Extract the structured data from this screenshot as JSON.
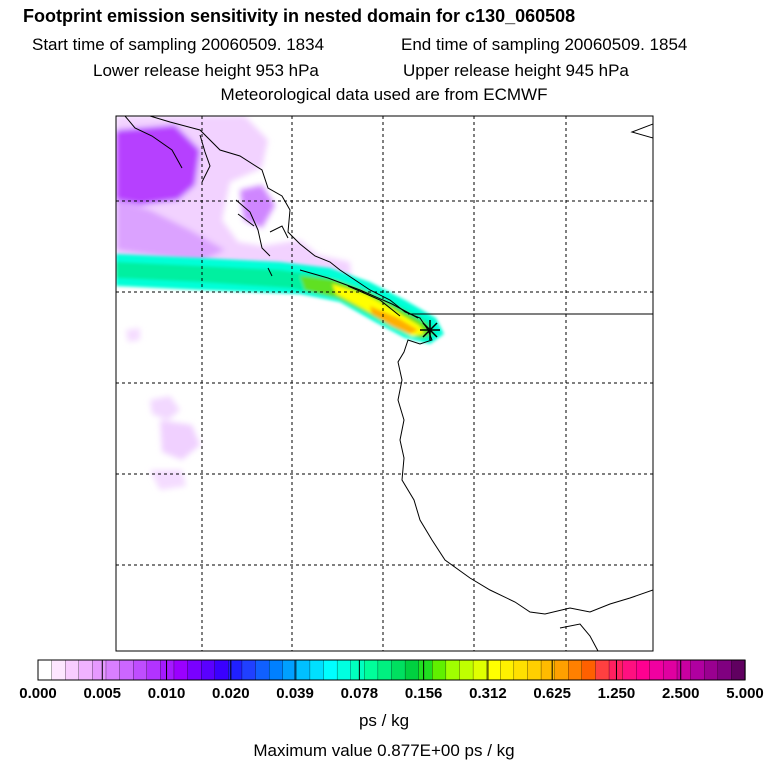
{
  "header": {
    "title": "Footprint emission sensitivity in nested domain for c130_060508",
    "start_time": "Start time of sampling 20060509.  1834",
    "end_time": "End time of sampling 20060509.  1854",
    "lower_release": "Lower release height  953 hPa",
    "upper_release": "Upper release height  945 hPa",
    "met_data": "Meteorological data used are from ECMWF"
  },
  "map": {
    "gridlines": "dashed",
    "features": [
      "coastline",
      "plume",
      "release-marker"
    ],
    "plume_colors": [
      "#c8a0ff",
      "#9b1fff",
      "#00ffe0",
      "#00e080",
      "#ffff00",
      "#ffb000"
    ]
  },
  "colorbar": {
    "tick_labels": [
      "0.000",
      "0.005",
      "0.010",
      "0.020",
      "0.039",
      "0.078",
      "0.156",
      "0.312",
      "0.625",
      "1.250",
      "2.500",
      "5.000"
    ],
    "colors": [
      "#ffffff",
      "#fde6ff",
      "#f8ccff",
      "#f0b2ff",
      "#e699ff",
      "#d97fff",
      "#cc66ff",
      "#bf4dff",
      "#b233ff",
      "#a51aff",
      "#9b00ff",
      "#7a00ff",
      "#5a00ff",
      "#3a00ff",
      "#2020ff",
      "#2040ff",
      "#1060ff",
      "#0080ff",
      "#00a0ff",
      "#00c0ff",
      "#00e0ff",
      "#00ffff",
      "#00ffe0",
      "#00ffc0",
      "#00ff9a",
      "#00f080",
      "#00e060",
      "#00d040",
      "#20e020",
      "#60f000",
      "#a0ff00",
      "#c0ff00",
      "#e0ff00",
      "#ffff00",
      "#fff000",
      "#ffe000",
      "#ffcf00",
      "#ffbb00",
      "#ffa000",
      "#ff8000",
      "#ff6000",
      "#ff4040",
      "#ff2060",
      "#ff1080",
      "#ff0090",
      "#f000a0",
      "#e000a0",
      "#c800a0",
      "#b000a0",
      "#9a0090",
      "#800080",
      "#600060"
    ],
    "unit": "ps / kg",
    "max_value": "Maximum value  0.877E+00 ps / kg"
  }
}
